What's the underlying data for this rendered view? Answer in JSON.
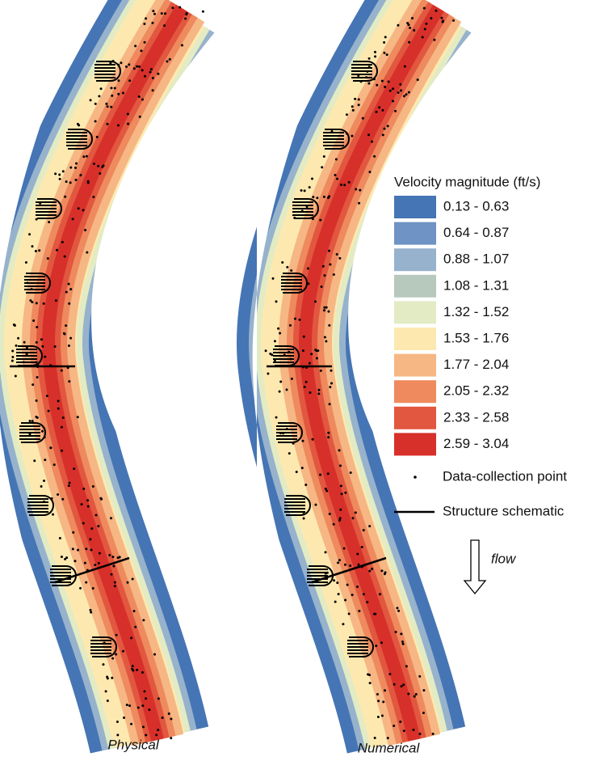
{
  "legend": {
    "title": "Velocity magnitude (ft/s)",
    "items": [
      {
        "label": "0.13 - 0.63",
        "color": "#4575b4"
      },
      {
        "label": "0.64 - 0.87",
        "color": "#6e93c4"
      },
      {
        "label": "0.88 - 1.07",
        "color": "#97b2cc"
      },
      {
        "label": "1.08 - 1.31",
        "color": "#b7c9bc"
      },
      {
        "label": "1.32 - 1.52",
        "color": "#e2ebc4"
      },
      {
        "label": "1.53 - 1.76",
        "color": "#fde9b0"
      },
      {
        "label": "1.77 - 2.04",
        "color": "#f6b784"
      },
      {
        "label": "2.05 - 2.32",
        "color": "#ee8a5e"
      },
      {
        "label": "2.33 - 2.58",
        "color": "#e2573f"
      },
      {
        "label": "2.59 - 3.04",
        "color": "#d7302a"
      }
    ],
    "point_label": "Data-collection point",
    "line_label": "Structure schematic",
    "flow_label": "flow"
  },
  "panels": [
    {
      "label": "Physical"
    },
    {
      "label": "Numerical"
    }
  ]
}
